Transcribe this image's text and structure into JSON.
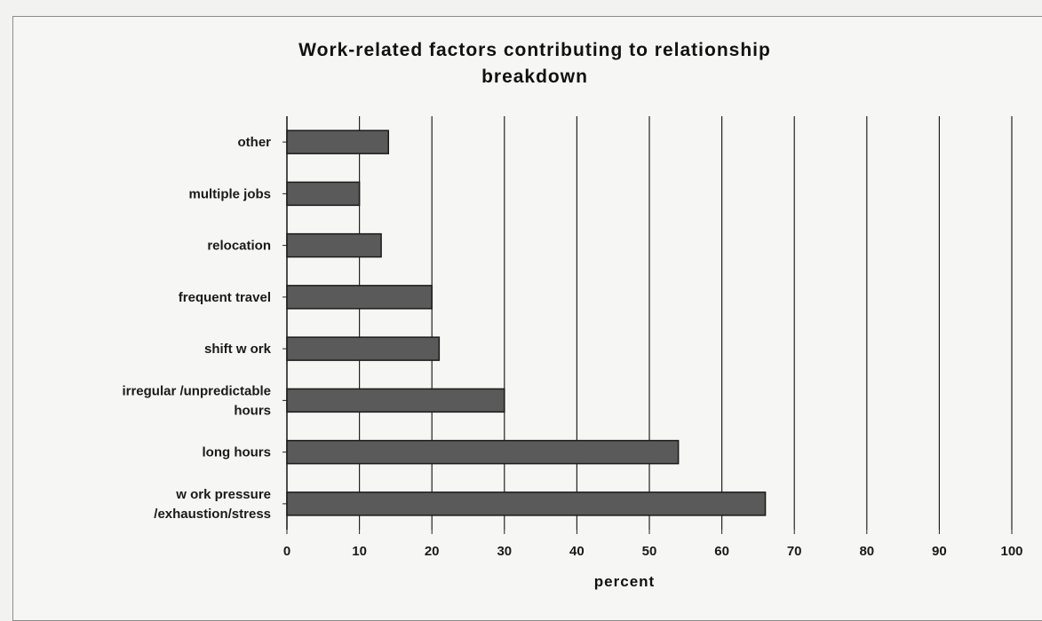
{
  "chart_data": {
    "type": "bar",
    "orientation": "horizontal",
    "title": "Work-related factors contributing to relationship breakdown",
    "title_lines": [
      "Work-related factors contributing to relationship",
      "breakdown"
    ],
    "categories": [
      "other",
      "multiple jobs",
      "relocation",
      "frequent travel",
      "shift w ork",
      "irregular /unpredictable hours",
      "long hours",
      "w ork pressure /exhaustion/stress"
    ],
    "category_lines": [
      [
        "other"
      ],
      [
        "multiple jobs"
      ],
      [
        "relocation"
      ],
      [
        "frequent travel"
      ],
      [
        "shift w ork"
      ],
      [
        "irregular /unpredictable",
        "hours"
      ],
      [
        "long hours"
      ],
      [
        "w ork pressure",
        "/exhaustion/stress"
      ]
    ],
    "values": [
      14,
      10,
      13,
      20,
      21,
      30,
      54,
      66
    ],
    "xlabel": "percent",
    "ylabel": "",
    "xlim": [
      0,
      100
    ],
    "xticks": [
      0,
      10,
      20,
      30,
      40,
      50,
      60,
      70,
      80,
      90,
      100
    ],
    "grid": "vertical",
    "legend": "none",
    "bar_color": "#5a5a5a",
    "bar_edge_color": "#1a1a1a",
    "grid_color": "#222222",
    "background_color": "#f6f6f4"
  }
}
